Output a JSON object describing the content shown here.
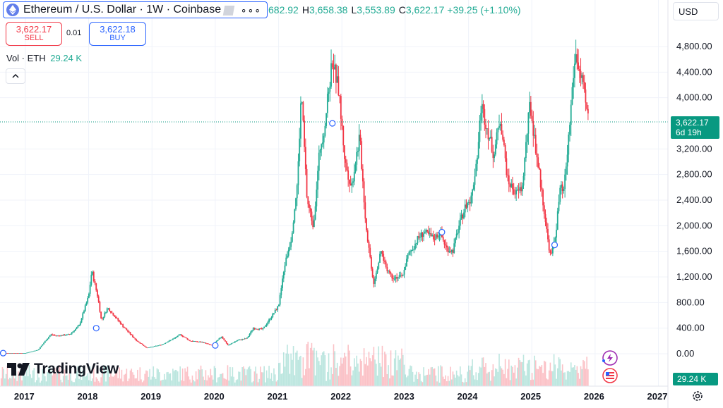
{
  "header": {
    "title": "Ethereum / U.S. Dollar · 1W · Coinbase",
    "ohlc": {
      "open_partial": "682.92",
      "h_label": "H",
      "high": "3,658.38",
      "l_label": "L",
      "low": "3,553.89",
      "c_label": "C",
      "close": "3,622.17",
      "change": "+39.25 (+1.10%)"
    },
    "currency": "USD"
  },
  "trade": {
    "sell_price": "3,622.17",
    "sell_label": "SELL",
    "spread": "0.01",
    "buy_price": "3,622.18",
    "buy_label": "BUY"
  },
  "volume": {
    "label": "Vol · ETH",
    "value": "29.24 K",
    "badge": "29.24 K"
  },
  "price_badge": {
    "price": "3,622.17",
    "countdown": "6d 19h"
  },
  "branding": {
    "logo_text": "TradingView"
  },
  "colors": {
    "up": "#22ab94",
    "down": "#f23645",
    "accent": "#2962ff",
    "badge": "#089981",
    "grid": "#f0f3fa"
  },
  "icons": [
    "ethereum-icon",
    "flag-icon",
    "more-dots-icon",
    "collapse-chevron-icon",
    "lightning-icon",
    "us-flag-icon",
    "settings-icon"
  ],
  "chart_data": {
    "type": "candlestick",
    "interval": "1W",
    "y_ticks": [
      "4,800.00",
      "4,400.00",
      "4,000.00",
      "3,200.00",
      "2,800.00",
      "2,400.00",
      "2,000.00",
      "1,600.00",
      "1,200.00",
      "800.00",
      "400.00",
      "0.00"
    ],
    "y_tick_values": [
      4800,
      4400,
      4000,
      3200,
      2800,
      2400,
      2000,
      1600,
      1200,
      800,
      400,
      0
    ],
    "ylim": [
      -400,
      5200
    ],
    "x_ticks": [
      "2017",
      "2018",
      "2019",
      "2020",
      "2021",
      "2022",
      "2023",
      "2024",
      "2025",
      "2026",
      "2027"
    ],
    "xlim": [
      2016.6,
      2027.15
    ],
    "last_price": 3622.17,
    "price_path": [
      [
        2016.6,
        10
      ],
      [
        2016.9,
        10
      ],
      [
        2017.0,
        10
      ],
      [
        2017.2,
        60
      ],
      [
        2017.4,
        300
      ],
      [
        2017.5,
        280
      ],
      [
        2017.7,
        300
      ],
      [
        2017.85,
        440
      ],
      [
        2018.0,
        900
      ],
      [
        2018.05,
        1300
      ],
      [
        2018.15,
        860
      ],
      [
        2018.2,
        520
      ],
      [
        2018.3,
        720
      ],
      [
        2018.4,
        600
      ],
      [
        2018.55,
        420
      ],
      [
        2018.75,
        210
      ],
      [
        2018.92,
        90
      ],
      [
        2019.15,
        140
      ],
      [
        2019.35,
        240
      ],
      [
        2019.45,
        300
      ],
      [
        2019.6,
        200
      ],
      [
        2019.8,
        180
      ],
      [
        2019.95,
        130
      ],
      [
        2020.1,
        270
      ],
      [
        2020.2,
        130
      ],
      [
        2020.35,
        210
      ],
      [
        2020.5,
        240
      ],
      [
        2020.6,
        400
      ],
      [
        2020.75,
        380
      ],
      [
        2020.9,
        600
      ],
      [
        2021.0,
        750
      ],
      [
        2021.1,
        1400
      ],
      [
        2021.2,
        1800
      ],
      [
        2021.3,
        2700
      ],
      [
        2021.36,
        4100
      ],
      [
        2021.45,
        2400
      ],
      [
        2021.55,
        2000
      ],
      [
        2021.65,
        3200
      ],
      [
        2021.72,
        3500
      ],
      [
        2021.85,
        4600
      ],
      [
        2021.95,
        4100
      ],
      [
        2022.05,
        3000
      ],
      [
        2022.15,
        2600
      ],
      [
        2022.28,
        3400
      ],
      [
        2022.38,
        2000
      ],
      [
        2022.5,
        1100
      ],
      [
        2022.62,
        1600
      ],
      [
        2022.7,
        1350
      ],
      [
        2022.8,
        1200
      ],
      [
        2022.95,
        1200
      ],
      [
        2023.05,
        1550
      ],
      [
        2023.12,
        1650
      ],
      [
        2023.2,
        1800
      ],
      [
        2023.3,
        1900
      ],
      [
        2023.45,
        1800
      ],
      [
        2023.55,
        1900
      ],
      [
        2023.65,
        1650
      ],
      [
        2023.75,
        1600
      ],
      [
        2023.85,
        2000
      ],
      [
        2023.95,
        2300
      ],
      [
        2024.05,
        2450
      ],
      [
        2024.15,
        3200
      ],
      [
        2024.2,
        3900
      ],
      [
        2024.3,
        3500
      ],
      [
        2024.4,
        3100
      ],
      [
        2024.5,
        3700
      ],
      [
        2024.55,
        3300
      ],
      [
        2024.62,
        2700
      ],
      [
        2024.75,
        2500
      ],
      [
        2024.85,
        2600
      ],
      [
        2024.92,
        3400
      ],
      [
        2024.97,
        3900
      ],
      [
        2025.05,
        3300
      ],
      [
        2025.12,
        2800
      ],
      [
        2025.2,
        2200
      ],
      [
        2025.25,
        1800
      ],
      [
        2025.3,
        1500
      ],
      [
        2025.38,
        1900
      ],
      [
        2025.45,
        2600
      ],
      [
        2025.5,
        2500
      ],
      [
        2025.55,
        3000
      ],
      [
        2025.6,
        3600
      ],
      [
        2025.65,
        4300
      ],
      [
        2025.7,
        4700
      ],
      [
        2025.75,
        4400
      ],
      [
        2025.8,
        4200
      ],
      [
        2025.85,
        3900
      ],
      [
        2025.9,
        3622
      ]
    ],
    "markers": [
      [
        2016.65,
        10
      ],
      [
        2018.12,
        400
      ],
      [
        2020.0,
        130
      ],
      [
        2021.85,
        3600
      ],
      [
        2023.58,
        1900
      ],
      [
        2025.36,
        1700
      ]
    ]
  }
}
